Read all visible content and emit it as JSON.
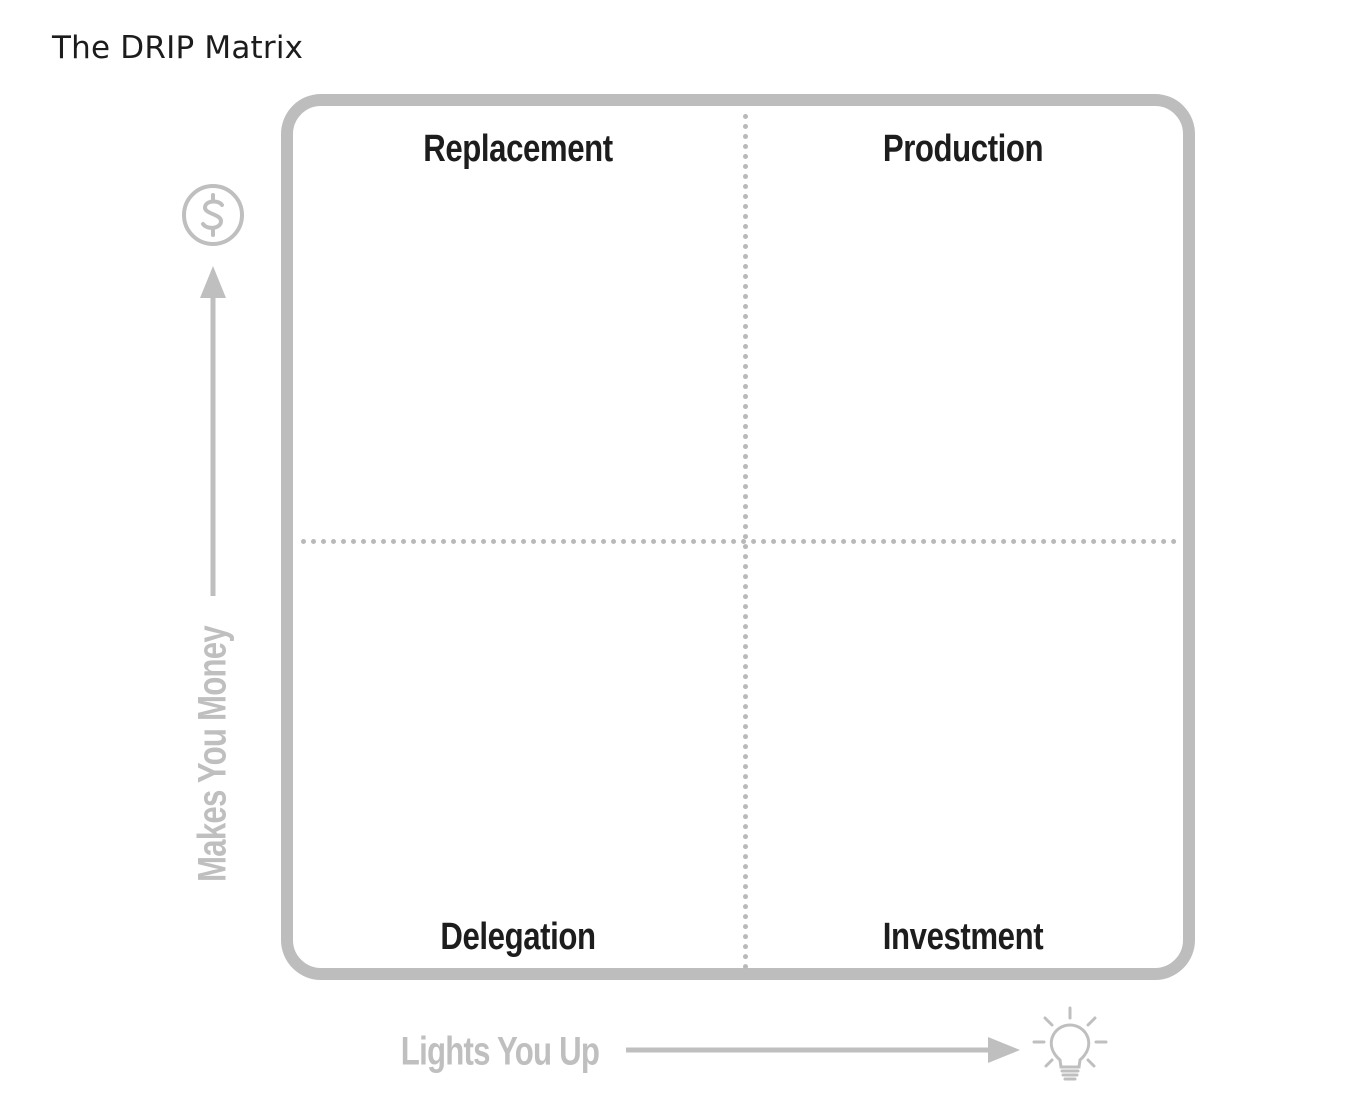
{
  "title": "The DRIP Matrix",
  "quadrants": {
    "top_left": "Replacement",
    "top_right": "Production",
    "bottom_left": "Delegation",
    "bottom_right": "Investment"
  },
  "axes": {
    "y_label": "Makes You Money",
    "y_icon": "dollar-icon",
    "x_label": "Lights You Up",
    "x_icon": "lightbulb-icon"
  },
  "colors": {
    "border": "#bdbdbd",
    "axis": "#bfbfbf",
    "label": "#1d1d1d"
  }
}
